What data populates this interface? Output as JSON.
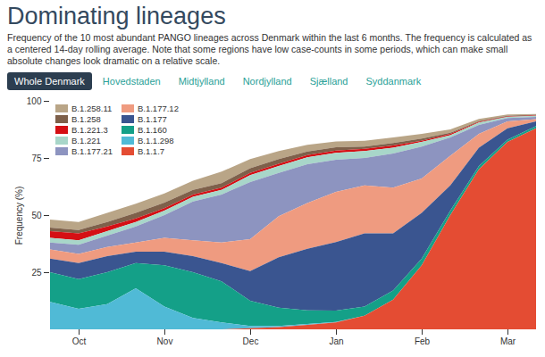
{
  "chart_data": {
    "type": "area",
    "title": "Dominating lineages",
    "subtitle": "Frequency of the 10 most abundant PANGO lineages across Denmark within the last 6 months. The frequency is calculated as a centered 14-day rolling average. Note that some regions have low case-counts in some periods, which can make small absolute changes look dramatic on a relative scale.",
    "tabs": [
      "Whole Denmark",
      "Hovedstaden",
      "Midtjylland",
      "Nordjylland",
      "Sjælland",
      "Syddanmark"
    ],
    "y_label": "Frequency (%)",
    "stacked": true,
    "legend": "top-left",
    "grid": false,
    "ylim": [
      0,
      100
    ],
    "yticks": [
      25,
      50,
      75,
      100
    ],
    "categories": [
      null,
      "Oct",
      null,
      null,
      "Nov",
      null,
      null,
      "Dec",
      null,
      null,
      "Jan",
      null,
      null,
      "Feb",
      null,
      null,
      "Mar",
      null
    ],
    "series": [
      {
        "name": "B.1.258.11",
        "color": "#b9a587",
        "values": [
          3.5,
          3.5,
          4,
          4,
          4,
          4,
          5,
          4,
          3.5,
          3,
          2.5,
          2.5,
          2.5,
          2,
          1.5,
          1,
          0.5,
          0.3
        ]
      },
      {
        "name": "B.1.258",
        "color": "#7e604a",
        "values": [
          1.5,
          1.5,
          2,
          2.5,
          2.5,
          2,
          2,
          2,
          2,
          1.5,
          1.5,
          1,
          1,
          1,
          0.5,
          0.3,
          0.3,
          0.2
        ]
      },
      {
        "name": "B.1.221.3",
        "color": "#d50f14",
        "values": [
          3,
          3,
          2,
          1.5,
          1,
          1,
          1,
          1,
          1,
          1,
          1,
          1,
          1,
          0.5,
          0.5,
          0.3,
          0.2,
          0.2
        ]
      },
      {
        "name": "B.1.221",
        "color": "#a8d6c9",
        "values": [
          2,
          2,
          2,
          2,
          2,
          2,
          2,
          3,
          3,
          3,
          3,
          3,
          2.5,
          2,
          1,
          1,
          0.5,
          0.5
        ]
      },
      {
        "name": "B.1.177.21",
        "color": "#8d94c0",
        "values": [
          3,
          4,
          5,
          7,
          10,
          17,
          21,
          25,
          19,
          17,
          14,
          12,
          15,
          14,
          8,
          4,
          1.5,
          1
        ]
      },
      {
        "name": "B.1.177.12",
        "color": "#ef9b80",
        "values": [
          4,
          4,
          4,
          4,
          6,
          7,
          9,
          14,
          18,
          20,
          22,
          21,
          20,
          15,
          13,
          6,
          3,
          1
        ]
      },
      {
        "name": "B.1.177",
        "color": "#3a5590",
        "values": [
          6,
          7,
          7,
          5,
          6,
          7,
          8,
          13,
          22,
          27,
          30,
          32,
          25,
          20,
          11,
          8,
          5,
          2
        ]
      },
      {
        "name": "B.1.160",
        "color": "#14a088",
        "values": [
          13,
          13,
          14,
          11,
          18,
          20,
          18,
          11,
          8,
          6,
          5,
          4,
          4,
          3,
          2,
          1.5,
          1,
          1
        ]
      },
      {
        "name": "B.1.1.298",
        "color": "#50bad6",
        "values": [
          12,
          9,
          11,
          18,
          10,
          5,
          3,
          1,
          0.5,
          0.3,
          0.2,
          0,
          0,
          0,
          0,
          0,
          0,
          0
        ]
      },
      {
        "name": "B.1.1.7",
        "color": "#e44c33",
        "values": [
          0,
          0,
          0,
          0,
          0,
          0,
          0,
          0.5,
          1,
          2,
          3,
          6,
          13,
          28,
          50,
          70,
          82,
          88
        ]
      }
    ]
  }
}
